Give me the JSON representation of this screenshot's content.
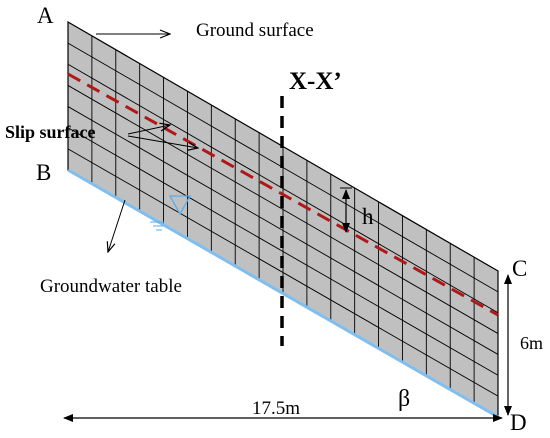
{
  "points": {
    "a": "A",
    "b": "B",
    "c": "C",
    "d": "D"
  },
  "labels": {
    "ground_surface": "Ground surface",
    "slip_surface": "Slip surface",
    "groundwater_table": "Groundwater table",
    "section": "X-X’",
    "h": "h",
    "beta": "β"
  },
  "dimensions": {
    "length": "17.5m",
    "height": "6m"
  },
  "colors": {
    "grid_fill": "#c0c0c0",
    "grid_line": "#000000",
    "slip_line": "#b01818",
    "water_line": "#7fbff0",
    "section_line": "#000000"
  },
  "icons": {
    "water_symbol": "water-level-triangle-icon"
  }
}
